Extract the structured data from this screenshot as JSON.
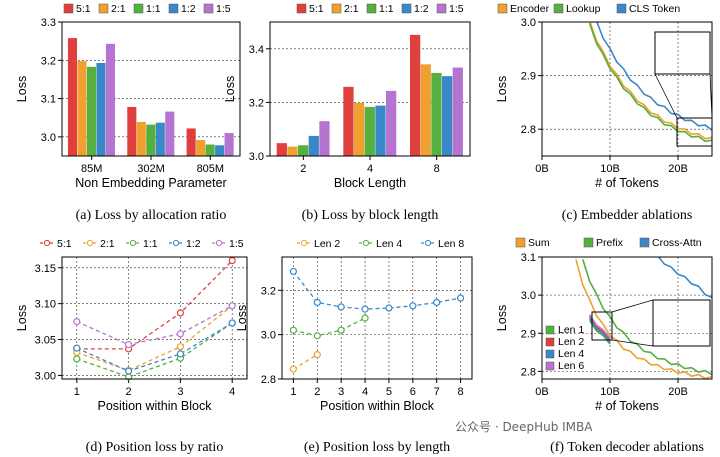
{
  "colors": {
    "5:1": "#e0403d",
    "2:1": "#f0a030",
    "1:1": "#55b040",
    "1:2": "#3a88c8",
    "1:5": "#b574cf",
    "Encoder": "#f0a030",
    "Lookup": "#55b040",
    "CLS Token": "#3a88c8",
    "Sum": "#f0a030",
    "Prefix": "#55b040",
    "Cross-Attn": "#3a88c8",
    "Len 1": "#55b040",
    "Len 2": "#e0403d",
    "Len 4": "#3a88c8",
    "Len 6": "#b574cf",
    "Len 8": "#3a88c8"
  },
  "watermark": "公众号 · DeepHub IMBA",
  "chart_data": [
    {
      "type": "bar",
      "id": "a",
      "caption": "(a) Loss by allocation ratio",
      "title": "",
      "xlabel": "Non Embedding Parameter",
      "ylabel": "Loss",
      "categories": [
        "85M",
        "302M",
        "805M"
      ],
      "ylim": [
        2.95,
        3.3
      ],
      "yticks": [
        "3.0",
        "3.1",
        "3.2",
        "3.3"
      ],
      "series": [
        {
          "name": "5:1",
          "values": [
            3.258,
            3.078,
            3.022
          ]
        },
        {
          "name": "2:1",
          "values": [
            3.198,
            3.039,
            2.992
          ]
        },
        {
          "name": "1:1",
          "values": [
            3.183,
            3.032,
            2.98
          ]
        },
        {
          "name": "1:2",
          "values": [
            3.193,
            3.037,
            2.978
          ]
        },
        {
          "name": "1:5",
          "values": [
            3.243,
            3.066,
            3.01
          ]
        }
      ],
      "legend": [
        "5:1",
        "2:1",
        "1:1",
        "1:2",
        "1:5"
      ]
    },
    {
      "type": "bar",
      "id": "b",
      "caption": "(b) Loss by block length",
      "title": "",
      "xlabel": "Block Length",
      "ylabel": "Loss",
      "categories": [
        "2",
        "4",
        "8"
      ],
      "ylim": [
        3.0,
        3.5
      ],
      "yticks": [
        "3.0",
        "3.2",
        "3.4"
      ],
      "series": [
        {
          "name": "5:1",
          "values": [
            3.048,
            3.258,
            3.452
          ]
        },
        {
          "name": "2:1",
          "values": [
            3.035,
            3.198,
            3.342
          ]
        },
        {
          "name": "1:1",
          "values": [
            3.04,
            3.183,
            3.31
          ]
        },
        {
          "name": "1:2",
          "values": [
            3.075,
            3.188,
            3.298
          ]
        },
        {
          "name": "1:5",
          "values": [
            3.13,
            3.243,
            3.33
          ]
        }
      ],
      "legend": [
        "5:1",
        "2:1",
        "1:1",
        "1:2",
        "1:5"
      ]
    },
    {
      "type": "line",
      "id": "c",
      "caption": "(c) Embedder ablations",
      "title": "",
      "xlabel": "# of Tokens",
      "ylabel": "Loss",
      "xlim": [
        0,
        25
      ],
      "xticks": [
        "0B",
        "10B",
        "20B"
      ],
      "ylim": [
        2.75,
        3.0
      ],
      "yticks": [
        "2.8",
        "2.9",
        "3.0"
      ],
      "series": [
        {
          "name": "Encoder",
          "x": [
            7,
            8,
            9,
            10,
            11,
            12,
            13,
            14,
            15,
            16,
            17,
            18,
            19,
            20,
            21,
            22,
            23,
            24,
            25
          ],
          "values": [
            3.0,
            2.968,
            2.942,
            2.92,
            2.9,
            2.883,
            2.868,
            2.855,
            2.843,
            2.833,
            2.824,
            2.816,
            2.809,
            2.803,
            2.798,
            2.793,
            2.789,
            2.785,
            2.782
          ]
        },
        {
          "name": "Lookup",
          "x": [
            7,
            8,
            9,
            10,
            11,
            12,
            13,
            14,
            15,
            16,
            17,
            18,
            19,
            20,
            21,
            22,
            23,
            24,
            25
          ],
          "values": [
            2.995,
            2.963,
            2.937,
            2.915,
            2.895,
            2.878,
            2.863,
            2.85,
            2.838,
            2.828,
            2.819,
            2.811,
            2.804,
            2.798,
            2.793,
            2.788,
            2.784,
            2.78,
            2.777
          ]
        },
        {
          "name": "CLS Token",
          "x": [
            8,
            9,
            10,
            11,
            12,
            13,
            14,
            15,
            16,
            17,
            18,
            19,
            20,
            21,
            22,
            23,
            24,
            25
          ],
          "values": [
            3.0,
            2.972,
            2.948,
            2.928,
            2.91,
            2.894,
            2.88,
            2.868,
            2.857,
            2.848,
            2.84,
            2.832,
            2.825,
            2.819,
            2.814,
            2.809,
            2.805,
            2.801
          ]
        }
      ],
      "legend": [
        "Encoder",
        "Lookup",
        "CLS Token"
      ]
    },
    {
      "type": "line",
      "id": "d",
      "caption": "(d) Position loss by ratio",
      "title": "",
      "xlabel": "Position within Block",
      "ylabel": "Loss",
      "x": [
        1,
        2,
        3,
        4
      ],
      "xticks": [
        "1",
        "2",
        "3",
        "4"
      ],
      "ylim": [
        2.995,
        3.165
      ],
      "yticks": [
        "3.00",
        "3.05",
        "3.10",
        "3.15"
      ],
      "series": [
        {
          "name": "5:1",
          "values": [
            3.037,
            3.037,
            3.087,
            3.16
          ]
        },
        {
          "name": "2:1",
          "values": [
            3.032,
            3.007,
            3.04,
            3.097
          ]
        },
        {
          "name": "1:1",
          "values": [
            3.023,
            2.998,
            3.024,
            3.073
          ]
        },
        {
          "name": "1:2",
          "values": [
            3.038,
            3.006,
            3.03,
            3.073
          ]
        },
        {
          "name": "1:5",
          "values": [
            3.075,
            3.043,
            3.058,
            3.097
          ]
        }
      ],
      "legend": [
        "5:1",
        "2:1",
        "1:1",
        "1:2",
        "1:5"
      ]
    },
    {
      "type": "line",
      "id": "e",
      "caption": "(e) Position loss by length",
      "title": "",
      "xlabel": "Position within Block",
      "ylabel": "Loss",
      "x": [
        1,
        2,
        3,
        4,
        5,
        6,
        7,
        8
      ],
      "xticks": [
        "1",
        "2",
        "3",
        "4",
        "5",
        "6",
        "7",
        "8"
      ],
      "ylim": [
        2.8,
        3.35
      ],
      "yticks": [
        "2.8",
        "3.0",
        "3.2"
      ],
      "series": [
        {
          "name": "Len 2",
          "x": [
            1,
            2
          ],
          "values": [
            2.845,
            2.91
          ],
          "color": "#f0a030"
        },
        {
          "name": "Len 4",
          "x": [
            1,
            2,
            3,
            4
          ],
          "values": [
            3.02,
            2.995,
            3.02,
            3.075
          ],
          "color": "#55b040"
        },
        {
          "name": "Len 8",
          "x": [
            1,
            2,
            3,
            4,
            5,
            6,
            7,
            8
          ],
          "values": [
            3.285,
            3.145,
            3.125,
            3.115,
            3.12,
            3.13,
            3.145,
            3.165
          ],
          "color": "#3a88c8"
        }
      ],
      "legend": [
        "Len 2",
        "Len 4",
        "Len 8"
      ]
    },
    {
      "type": "line",
      "id": "f",
      "caption": "(f) Token decoder ablations",
      "title": "",
      "xlabel": "# of Tokens",
      "ylabel": "Loss",
      "xlim": [
        0,
        25
      ],
      "xticks": [
        "0B",
        "10B",
        "20B"
      ],
      "ylim": [
        2.78,
        3.1
      ],
      "yticks": [
        "2.8",
        "2.9",
        "3.0",
        "3.1"
      ],
      "series": [
        {
          "name": "Sum",
          "x": [
            5,
            6,
            7,
            8,
            9,
            10,
            11,
            12,
            13,
            14,
            15,
            16,
            17,
            18,
            19,
            20,
            21,
            22,
            23,
            24,
            25
          ],
          "values": [
            3.09,
            3.03,
            2.985,
            2.95,
            2.92,
            2.897,
            2.878,
            2.862,
            2.849,
            2.838,
            2.829,
            2.821,
            2.814,
            2.808,
            2.803,
            2.799,
            2.795,
            2.791,
            2.788,
            2.785,
            2.783
          ]
        },
        {
          "name": "Prefix",
          "x": [
            6,
            7,
            8,
            9,
            10,
            11,
            12,
            13,
            14,
            15,
            16,
            17,
            18,
            19,
            20,
            21,
            22,
            23,
            24,
            25
          ],
          "values": [
            3.09,
            3.04,
            3.0,
            2.968,
            2.94,
            2.918,
            2.899,
            2.882,
            2.868,
            2.856,
            2.846,
            2.837,
            2.829,
            2.822,
            2.816,
            2.811,
            2.806,
            2.802,
            2.798,
            2.795
          ]
        },
        {
          "name": "Cross-Attn",
          "x": [
            17,
            18,
            19,
            20,
            21,
            22,
            23,
            24,
            25
          ],
          "values": [
            3.1,
            3.085,
            3.07,
            3.058,
            3.045,
            3.033,
            3.02,
            3.005,
            2.99
          ]
        },
        {
          "name": "Len 1",
          "x": [
            7,
            8,
            9,
            10
          ],
          "values": [
            2.93,
            2.91,
            2.89,
            2.875
          ]
        },
        {
          "name": "Len 2",
          "x": [
            7,
            8,
            9,
            10
          ],
          "values": [
            2.94,
            2.92,
            2.9,
            2.885
          ]
        },
        {
          "name": "Len 4",
          "x": [
            7,
            8,
            9,
            10
          ],
          "values": [
            2.935,
            2.915,
            2.895,
            2.88
          ]
        },
        {
          "name": "Len 6",
          "x": [
            7,
            8,
            9,
            10
          ],
          "values": [
            2.945,
            2.925,
            2.905,
            2.89
          ]
        }
      ],
      "legend_top": [
        "Sum",
        "Prefix",
        "Cross-Attn"
      ],
      "legend_inner": [
        "Len 1",
        "Len 2",
        "Len 4",
        "Len 6"
      ]
    }
  ]
}
